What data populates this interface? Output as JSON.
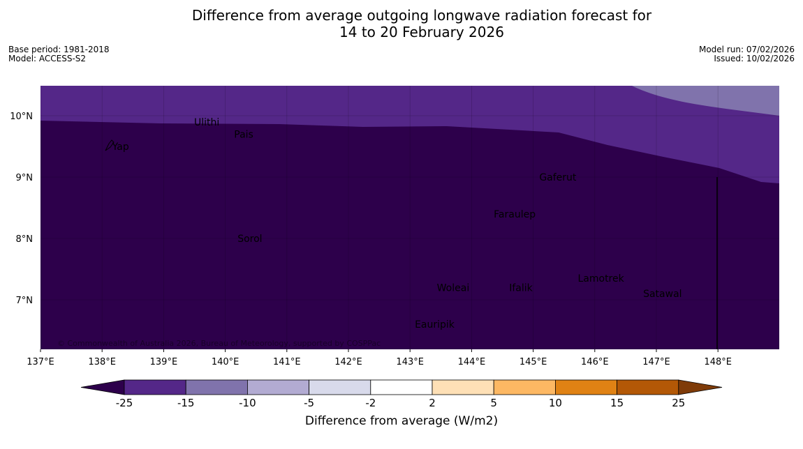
{
  "title": {
    "line1": "Difference from average outgoing longwave radiation forecast for",
    "line2": "14 to 20 February 2026"
  },
  "meta": {
    "base_period": "Base period: 1981-2018",
    "model": "Model: ACCESS-S2",
    "model_run": "Model run: 07/02/2026",
    "issued": "Issued: 10/02/2026"
  },
  "map": {
    "lon_range": [
      137,
      149
    ],
    "lat_range": [
      6.2,
      10.5
    ],
    "x_ticks": [
      "137°E",
      "138°E",
      "139°E",
      "140°E",
      "141°E",
      "142°E",
      "143°E",
      "144°E",
      "145°E",
      "146°E",
      "147°E",
      "148°E"
    ],
    "y_ticks": [
      "10°N",
      "9°N",
      "8°N",
      "7°N"
    ],
    "copyright": "© Commonwealth of Australia 2026, Bureau of Meteorology, supported by COSPPac",
    "places": [
      {
        "name": "Yap",
        "lon": 138.3,
        "lat": 9.5
      },
      {
        "name": "Ulithi",
        "lon": 139.7,
        "lat": 9.9
      },
      {
        "name": "Pais",
        "lon": 140.3,
        "lat": 9.7
      },
      {
        "name": "Gaferut",
        "lon": 145.4,
        "lat": 9.0
      },
      {
        "name": "Faraulep",
        "lon": 144.7,
        "lat": 8.4
      },
      {
        "name": "Sorol",
        "lon": 140.4,
        "lat": 8.0
      },
      {
        "name": "Woleai",
        "lon": 143.7,
        "lat": 7.2
      },
      {
        "name": "Ifalik",
        "lon": 144.8,
        "lat": 7.2
      },
      {
        "name": "Lamotrek",
        "lon": 146.1,
        "lat": 7.35
      },
      {
        "name": "Satawal",
        "lon": 147.1,
        "lat": 7.1
      },
      {
        "name": "Eauripik",
        "lon": 143.4,
        "lat": 6.6
      }
    ]
  },
  "colorbar": {
    "labels": [
      "-25",
      "-15",
      "-10",
      "-5",
      "-2",
      "2",
      "5",
      "10",
      "15",
      "25"
    ],
    "colors": [
      "#2d004b",
      "#542788",
      "#8073ac",
      "#b2abd2",
      "#d8daeb",
      "#ffffff",
      "#fee0b6",
      "#fdb863",
      "#e08214",
      "#b35806",
      "#7f3b08"
    ],
    "title": "Difference from average (W/m2)"
  }
}
